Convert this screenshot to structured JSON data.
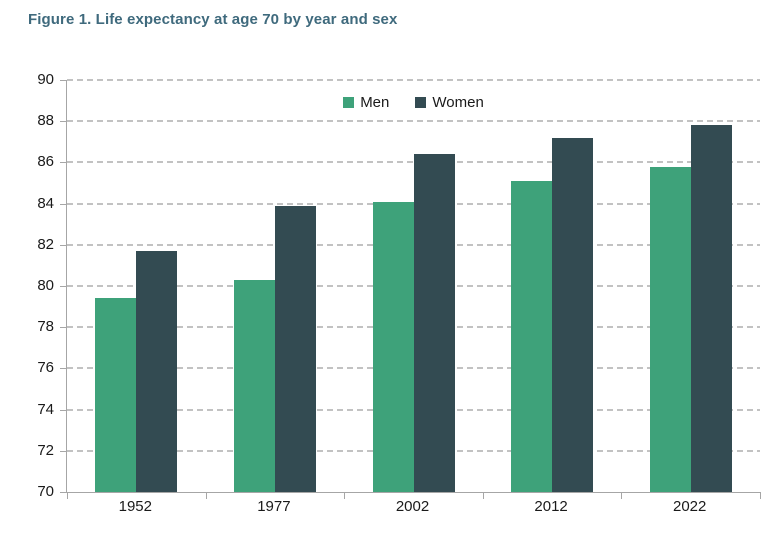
{
  "chart_data": {
    "type": "bar",
    "title": "Figure 1. Life expectancy at age 70 by year and sex",
    "title_color": "#3F6A7D",
    "categories": [
      "1952",
      "1977",
      "2002",
      "2012",
      "2022"
    ],
    "series": [
      {
        "name": "Men",
        "color": "#3EA27A",
        "values": [
          79.4,
          80.3,
          84.1,
          85.1,
          85.8
        ]
      },
      {
        "name": "Women",
        "color": "#334B52",
        "values": [
          81.7,
          83.9,
          86.4,
          87.2,
          87.8
        ]
      }
    ],
    "xlabel": "",
    "ylabel": "",
    "ylim": [
      70,
      90
    ],
    "ytick_step": 2,
    "grid": "horizontal-dashed",
    "grid_color": "#C2C2C2",
    "axis_color": "#A6A6A6",
    "tick_label_color": "#1A1A1A",
    "legend_position": "top-center"
  }
}
